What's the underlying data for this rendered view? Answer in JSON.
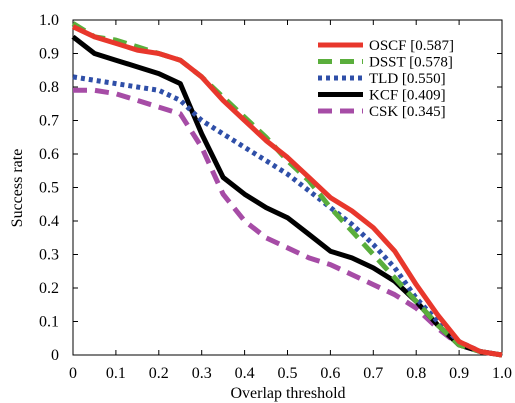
{
  "chart_data": {
    "type": "line",
    "xlabel": "Overlap threshold",
    "ylabel": "Success rate",
    "xlim": [
      0,
      1
    ],
    "ylim": [
      0,
      1
    ],
    "xticks": [
      "0",
      "0.1",
      "0.2",
      "0.3",
      "0.4",
      "0.5",
      "0.6",
      "0.7",
      "0.8",
      "0.9",
      "1.0"
    ],
    "yticks": [
      "0",
      "0.1",
      "0.2",
      "0.3",
      "0.4",
      "0.5",
      "0.6",
      "0.7",
      "0.8",
      "0.9",
      "1.0"
    ],
    "legend_position": "top-right",
    "grid": false,
    "series": [
      {
        "name": "OSCF [0.587]",
        "color": "#e8372c",
        "style": "solid",
        "x": [
          0,
          0.05,
          0.1,
          0.15,
          0.2,
          0.25,
          0.3,
          0.35,
          0.4,
          0.45,
          0.5,
          0.55,
          0.6,
          0.65,
          0.7,
          0.75,
          0.8,
          0.85,
          0.9,
          0.95,
          1.0
        ],
        "y": [
          0.98,
          0.95,
          0.93,
          0.91,
          0.9,
          0.88,
          0.83,
          0.76,
          0.7,
          0.64,
          0.59,
          0.53,
          0.47,
          0.43,
          0.38,
          0.31,
          0.21,
          0.12,
          0.04,
          0.01,
          0
        ]
      },
      {
        "name": "DSST [0.578]",
        "color": "#5aae3c",
        "style": "dashed",
        "x": [
          0,
          0.05,
          0.1,
          0.15,
          0.2,
          0.25,
          0.3,
          0.35,
          0.4,
          0.45,
          0.5,
          0.55,
          0.6,
          0.65,
          0.7,
          0.75,
          0.8,
          0.85,
          0.9,
          0.95,
          1.0
        ],
        "y": [
          0.99,
          0.95,
          0.94,
          0.92,
          0.9,
          0.88,
          0.83,
          0.77,
          0.71,
          0.65,
          0.58,
          0.52,
          0.44,
          0.37,
          0.3,
          0.23,
          0.16,
          0.09,
          0.03,
          0.01,
          0
        ]
      },
      {
        "name": "TLD [0.550]",
        "color": "#2f4fa8",
        "style": "dotted",
        "x": [
          0,
          0.05,
          0.1,
          0.15,
          0.2,
          0.25,
          0.3,
          0.35,
          0.4,
          0.45,
          0.5,
          0.55,
          0.6,
          0.65,
          0.7,
          0.75,
          0.8,
          0.85,
          0.9,
          0.95,
          1.0
        ],
        "y": [
          0.83,
          0.82,
          0.81,
          0.8,
          0.79,
          0.76,
          0.7,
          0.66,
          0.62,
          0.58,
          0.54,
          0.49,
          0.44,
          0.39,
          0.33,
          0.26,
          0.17,
          0.1,
          0.04,
          0.01,
          0
        ]
      },
      {
        "name": "KCF [0.409]",
        "color": "#000000",
        "style": "solid",
        "x": [
          0,
          0.05,
          0.1,
          0.15,
          0.2,
          0.25,
          0.3,
          0.35,
          0.4,
          0.45,
          0.5,
          0.55,
          0.6,
          0.65,
          0.7,
          0.75,
          0.8,
          0.85,
          0.9,
          0.95,
          1.0
        ],
        "y": [
          0.95,
          0.9,
          0.88,
          0.86,
          0.84,
          0.81,
          0.66,
          0.53,
          0.48,
          0.44,
          0.41,
          0.36,
          0.31,
          0.29,
          0.26,
          0.22,
          0.16,
          0.09,
          0.03,
          0.01,
          0
        ]
      },
      {
        "name": "CSK [0.345]",
        "color": "#a64ca6",
        "style": "dashed",
        "x": [
          0,
          0.05,
          0.1,
          0.15,
          0.2,
          0.25,
          0.3,
          0.35,
          0.4,
          0.45,
          0.5,
          0.55,
          0.6,
          0.65,
          0.7,
          0.75,
          0.8,
          0.85,
          0.9,
          0.95,
          1.0
        ],
        "y": [
          0.79,
          0.79,
          0.78,
          0.76,
          0.74,
          0.72,
          0.62,
          0.48,
          0.4,
          0.35,
          0.32,
          0.29,
          0.27,
          0.24,
          0.21,
          0.18,
          0.14,
          0.08,
          0.03,
          0.01,
          0
        ]
      }
    ]
  }
}
